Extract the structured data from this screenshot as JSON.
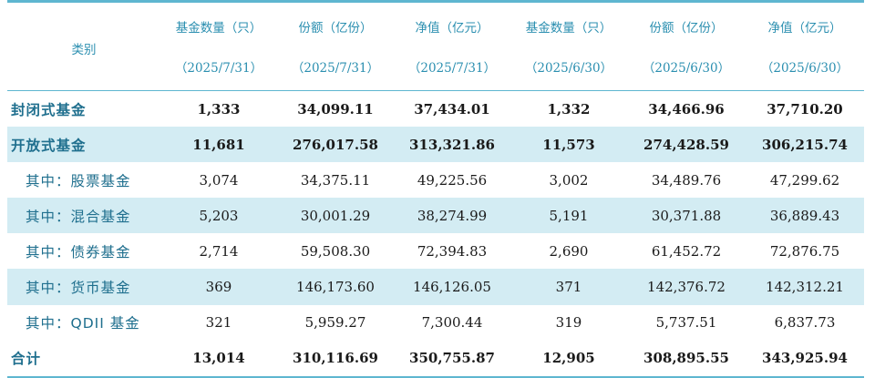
{
  "header": {
    "category": "类别",
    "columns": [
      {
        "label": "基金数量（只）",
        "date": "（2025/7/31）"
      },
      {
        "label": "份额（亿份）",
        "date": "（2025/7/31）"
      },
      {
        "label": "净值（亿元）",
        "date": "（2025/7/31）"
      },
      {
        "label": "基金数量（只）",
        "date": "（2025/6/30）"
      },
      {
        "label": "份额（亿份）",
        "date": "（2025/6/30）"
      },
      {
        "label": "净值（亿元）",
        "date": "（2025/6/30）"
      }
    ]
  },
  "rows": [
    {
      "name": "封闭式基金",
      "values": [
        "1,333",
        "34,099.11",
        "37,434.01",
        "1,332",
        "34,466.96",
        "37,710.20"
      ]
    },
    {
      "name": "开放式基金",
      "values": [
        "11,681",
        "276,017.58",
        "313,321.86",
        "11,573",
        "274,428.59",
        "306,215.74"
      ]
    },
    {
      "name": "其中：股票基金",
      "values": [
        "3,074",
        "34,375.11",
        "49,225.56",
        "3,002",
        "34,489.76",
        "47,299.62"
      ]
    },
    {
      "name": "其中：混合基金",
      "values": [
        "5,203",
        "30,001.29",
        "38,274.99",
        "5,191",
        "30,371.88",
        "36,889.43"
      ]
    },
    {
      "name": "其中：债券基金",
      "values": [
        "2,714",
        "59,508.30",
        "72,394.83",
        "2,690",
        "61,452.72",
        "72,876.75"
      ]
    },
    {
      "name": "其中：货币基金",
      "values": [
        "369",
        "146,173.60",
        "146,126.05",
        "371",
        "142,376.72",
        "142,312.21"
      ]
    },
    {
      "name": "其中：QDII 基金",
      "values": [
        "321",
        "5,959.27",
        "7,300.44",
        "319",
        "5,737.51",
        "6,837.73"
      ]
    },
    {
      "name": "合计",
      "values": [
        "13,014",
        "310,116.69",
        "350,755.87",
        "12,905",
        "308,895.55",
        "343,925.94"
      ]
    }
  ]
}
